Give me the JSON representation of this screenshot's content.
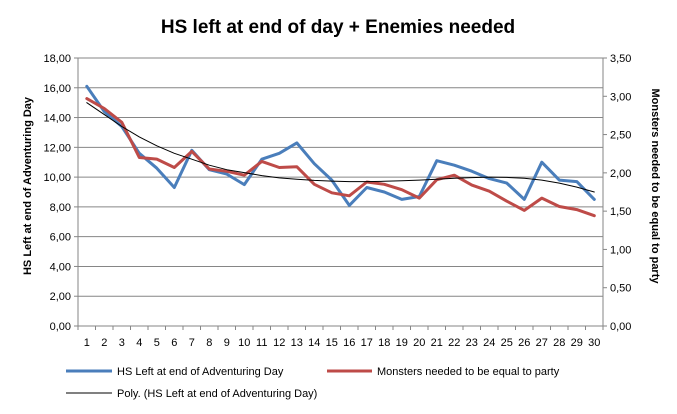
{
  "chart_data": {
    "type": "line",
    "title": "HS left at end of day + Enemies needed",
    "xlabel": "",
    "ylabel": "HS Left at end of Adventuring Day",
    "y2label": "Monsters needed to be equal to party",
    "x": [
      1,
      2,
      3,
      4,
      5,
      6,
      7,
      8,
      9,
      10,
      11,
      12,
      13,
      14,
      15,
      16,
      17,
      18,
      19,
      20,
      21,
      22,
      23,
      24,
      25,
      26,
      27,
      28,
      29,
      30
    ],
    "ylim": [
      0,
      18
    ],
    "yticks": [
      "0,00",
      "2,00",
      "4,00",
      "6,00",
      "8,00",
      "10,00",
      "12,00",
      "14,00",
      "16,00",
      "18,00"
    ],
    "y2lim": [
      0,
      3.5
    ],
    "y2ticks": [
      "0,00",
      "0,50",
      "1,00",
      "1,50",
      "2,00",
      "2,50",
      "3,00",
      "3,50"
    ],
    "grid": true,
    "legend_position": "bottom",
    "series": [
      {
        "name": "HS Left at end of Adventuring Day",
        "axis": "left",
        "color": "#4a7ebb",
        "values": [
          16.1,
          14.4,
          13.4,
          11.6,
          10.6,
          9.3,
          11.8,
          10.5,
          10.2,
          9.5,
          11.2,
          11.6,
          12.3,
          10.9,
          9.8,
          8.1,
          9.3,
          9.0,
          8.5,
          8.7,
          11.1,
          10.8,
          10.4,
          9.9,
          9.6,
          8.5,
          11.0,
          9.8,
          9.7,
          8.5
        ]
      },
      {
        "name": "Monsters needed to be equal to party",
        "axis": "right",
        "color": "#be4b48",
        "values": [
          2.97,
          2.84,
          2.66,
          2.2,
          2.18,
          2.07,
          2.28,
          2.05,
          2.02,
          1.97,
          2.15,
          2.07,
          2.08,
          1.85,
          1.74,
          1.7,
          1.88,
          1.85,
          1.78,
          1.67,
          1.91,
          1.97,
          1.84,
          1.76,
          1.63,
          1.51,
          1.67,
          1.56,
          1.52,
          1.44
        ]
      },
      {
        "name": "Poly. (HS Left at end of Adventuring Day)",
        "axis": "left",
        "color": "#000000",
        "type": "trendline",
        "values": [
          15.0,
          14.2,
          13.4,
          12.7,
          12.1,
          11.6,
          11.2,
          10.8,
          10.5,
          10.3,
          10.1,
          9.95,
          9.85,
          9.78,
          9.73,
          9.7,
          9.7,
          9.72,
          9.75,
          9.8,
          9.86,
          9.92,
          9.97,
          10.0,
          9.98,
          9.92,
          9.8,
          9.6,
          9.33,
          9.0
        ]
      }
    ]
  }
}
